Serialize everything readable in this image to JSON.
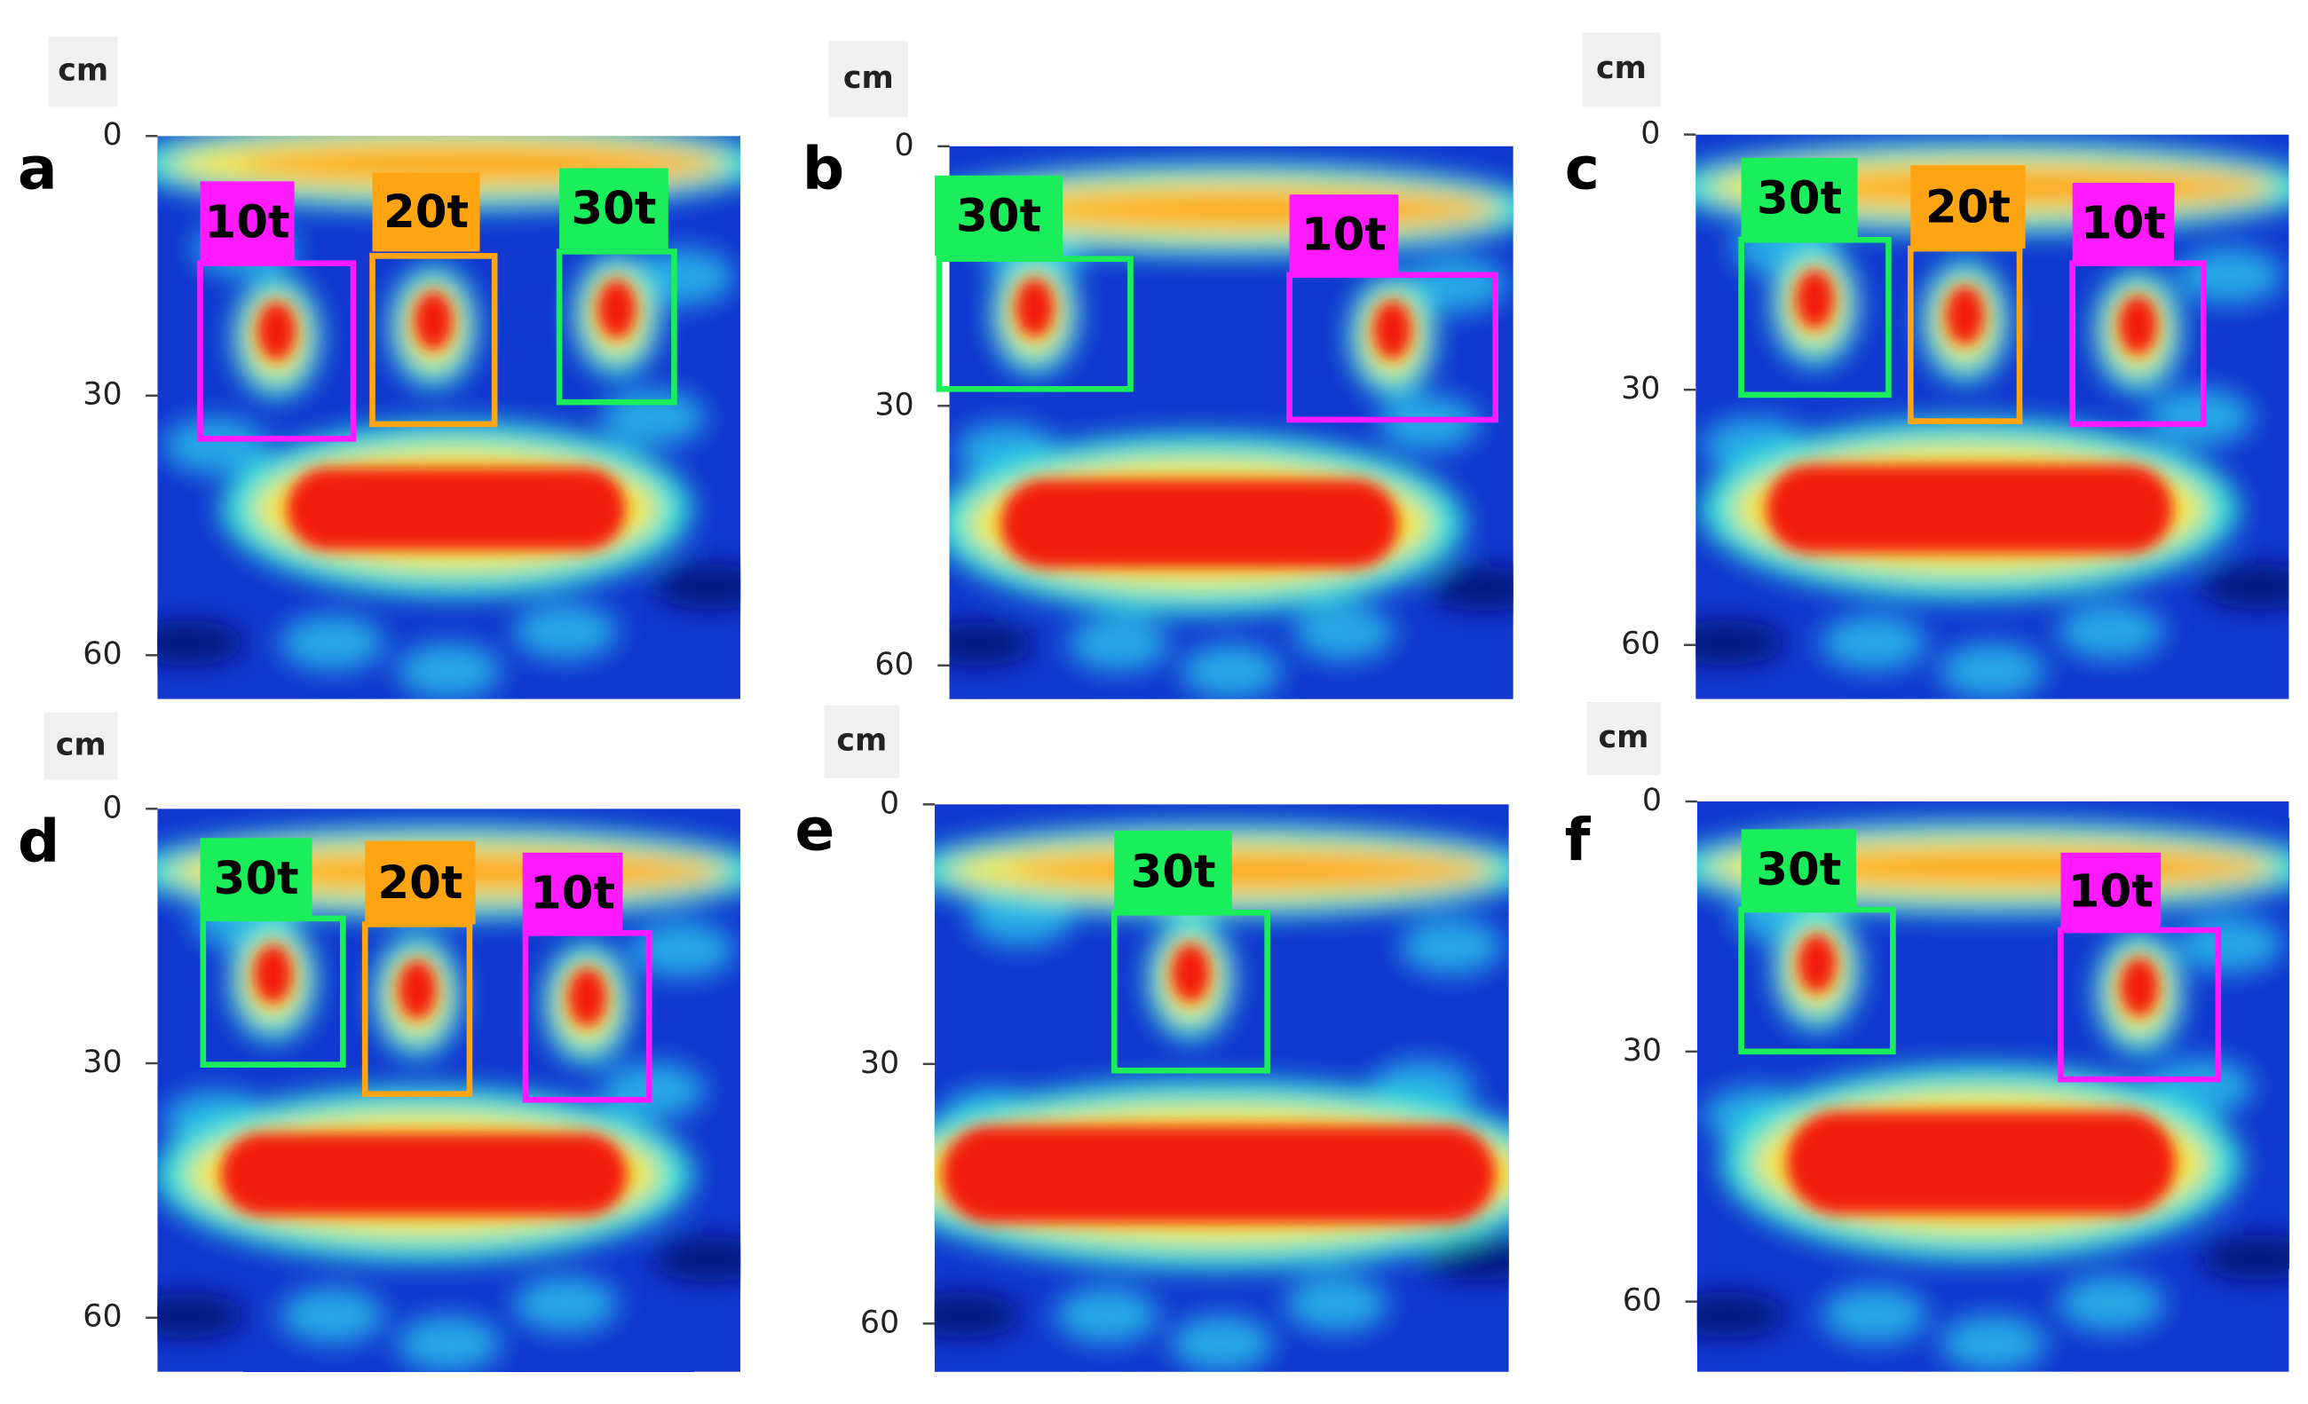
{
  "panels": [
    {
      "letter": "a",
      "unit": "cm",
      "yticks": [
        0,
        30,
        60
      ],
      "detections": [
        {
          "label": "10t",
          "color": "#ff1aff"
        },
        {
          "label": "20t",
          "color": "#ffa514"
        },
        {
          "label": "30t",
          "color": "#1aee5a"
        }
      ]
    },
    {
      "letter": "b",
      "unit": "cm",
      "yticks": [
        0,
        30,
        60
      ],
      "detections": [
        {
          "label": "30t",
          "color": "#1aee5a"
        },
        {
          "label": "10t",
          "color": "#ff1aff"
        }
      ]
    },
    {
      "letter": "c",
      "unit": "cm",
      "yticks": [
        0,
        30,
        60
      ],
      "detections": [
        {
          "label": "30t",
          "color": "#1aee5a"
        },
        {
          "label": "20t",
          "color": "#ffa514"
        },
        {
          "label": "10t",
          "color": "#ff1aff"
        }
      ]
    },
    {
      "letter": "d",
      "unit": "cm",
      "yticks": [
        0,
        30,
        60
      ],
      "detections": [
        {
          "label": "30t",
          "color": "#1aee5a"
        },
        {
          "label": "20t",
          "color": "#ffa514"
        },
        {
          "label": "10t",
          "color": "#ff1aff"
        }
      ]
    },
    {
      "letter": "e",
      "unit": "cm",
      "yticks": [
        0,
        30,
        60
      ],
      "detections": [
        {
          "label": "30t",
          "color": "#1aee5a"
        }
      ]
    },
    {
      "letter": "f",
      "unit": "cm",
      "yticks": [
        0,
        30,
        60
      ],
      "detections": [
        {
          "label": "30t",
          "color": "#1aee5a"
        },
        {
          "label": "10t",
          "color": "#ff1aff"
        }
      ]
    }
  ]
}
